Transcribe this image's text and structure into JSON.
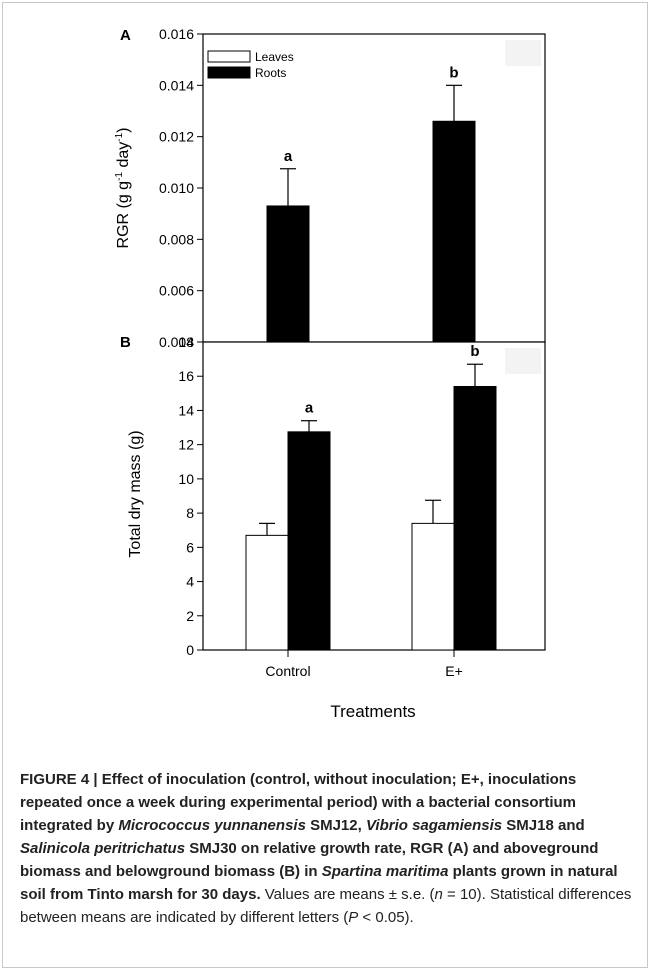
{
  "chart_data": [
    {
      "panel_label": "A",
      "type": "bar",
      "categories": [
        "Control",
        "E+"
      ],
      "ylabel": "RGR (g g",
      "ylabel_sup1": "-1",
      "ylabel_mid": " day",
      "ylabel_sup2": "-1",
      "ylabel_end": ")",
      "ylim": [
        0.004,
        0.016
      ],
      "yticks": [
        "0.004",
        "0.006",
        "0.008",
        "0.010",
        "0.012",
        "0.014",
        "0.016"
      ],
      "yticks_values": [
        0.004,
        0.006,
        0.008,
        0.01,
        0.012,
        0.014,
        0.016
      ],
      "series": [
        {
          "name": "Roots",
          "color": "#000000",
          "values": [
            0.0093,
            0.0126
          ],
          "errors": [
            0.00145,
            0.0014
          ],
          "letters": [
            "a",
            "b"
          ]
        }
      ],
      "legend": [
        {
          "name": "Leaves",
          "fill": "#ffffff"
        },
        {
          "name": "Roots",
          "fill": "#000000"
        }
      ],
      "legend_position": "top-left"
    },
    {
      "panel_label": "B",
      "type": "bar",
      "categories": [
        "Control",
        "E+"
      ],
      "xlabel": "Treatments",
      "ylabel": "Total dry mass (g)",
      "ylim": [
        0,
        18
      ],
      "yticks": [
        "0",
        "2",
        "4",
        "6",
        "8",
        "10",
        "12",
        "14",
        "16",
        "18"
      ],
      "yticks_values": [
        0,
        2,
        4,
        6,
        8,
        10,
        12,
        14,
        16,
        18
      ],
      "series": [
        {
          "name": "Leaves",
          "color": "#ffffff",
          "values": [
            6.7,
            7.4
          ],
          "errors": [
            0.7,
            1.35
          ],
          "letters": [
            "",
            ""
          ]
        },
        {
          "name": "Roots",
          "color": "#000000",
          "values": [
            12.75,
            15.4
          ],
          "errors": [
            0.65,
            1.3
          ],
          "letters": [
            "a",
            "b"
          ]
        }
      ]
    }
  ],
  "caption": {
    "lead": "FIGURE 4 | Effect of inoculation (control, without inoculation; E+, inoculations repeated once a week during experimental period) with a bacterial consortium integrated by ",
    "sp1": "Micrococcus yunnanensis",
    "t1": " SMJ12, ",
    "sp2": "Vibrio sagamiensis",
    "t2": " SMJ18 and ",
    "sp3": "Salinicola peritrichatus",
    "t3": " SMJ30 on relative growth rate, RGR (A) and aboveground biomass and belowground biomass (B) in ",
    "sp4": "Spartina maritima",
    "t4": " plants grown in natural soil from Tinto marsh for 30 days.",
    "rest1": " Values are means ± s.e. (",
    "n_var": "n",
    "rest2": " = 10). Statistical differences between means are indicated by different letters (",
    "p_var": "P",
    "rest3": " < 0.05)."
  }
}
